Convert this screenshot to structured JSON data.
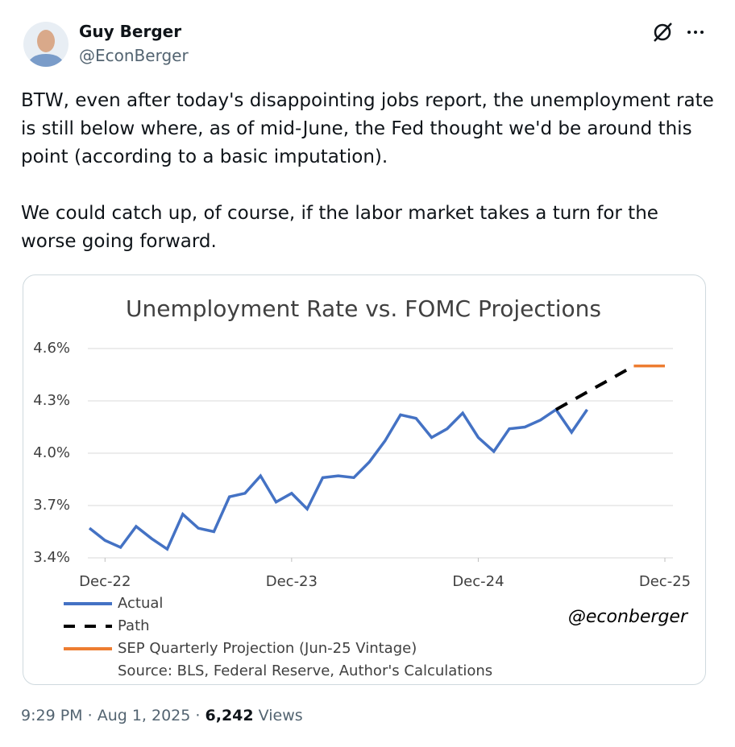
{
  "header": {
    "name": "Guy Berger",
    "handle": "@EconBerger"
  },
  "body": {
    "paragraphs": [
      "BTW, even after today's disappointing jobs report, the unemployment rate is still below where, as of mid-June, the Fed thought we'd be around this point (according to a basic imputation).",
      "We could catch up, of course, if the labor market takes a turn for the worse going forward."
    ]
  },
  "chart_data": {
    "type": "line",
    "title": "Unemployment Rate vs. FOMC Projections",
    "series": [
      {
        "name": "Actual",
        "color": "#4472c4",
        "dash": "solid",
        "x": [
          "Nov-22",
          "Dec-22",
          "Jan-23",
          "Feb-23",
          "Mar-23",
          "Apr-23",
          "May-23",
          "Jun-23",
          "Jul-23",
          "Aug-23",
          "Sep-23",
          "Oct-23",
          "Nov-23",
          "Dec-23",
          "Jan-24",
          "Feb-24",
          "Mar-24",
          "Apr-24",
          "May-24",
          "Jun-24",
          "Jul-24",
          "Aug-24",
          "Sep-24",
          "Oct-24",
          "Nov-24",
          "Dec-24",
          "Jan-25",
          "Feb-25",
          "Mar-25",
          "Apr-25",
          "May-25",
          "Jun-25",
          "Jul-25"
        ],
        "values": [
          3.57,
          3.5,
          3.46,
          3.58,
          3.51,
          3.45,
          3.65,
          3.57,
          3.55,
          3.75,
          3.77,
          3.87,
          3.72,
          3.77,
          3.68,
          3.86,
          3.87,
          3.86,
          3.95,
          4.07,
          4.22,
          4.2,
          4.09,
          4.14,
          4.23,
          4.09,
          4.01,
          4.14,
          4.15,
          4.19,
          4.25,
          4.12,
          4.25
        ]
      },
      {
        "name": "Path",
        "color": "#000000",
        "dash": "dashed",
        "x": [
          "May-25",
          "Jun-25",
          "Jul-25",
          "Aug-25",
          "Sep-25",
          "Oct-25"
        ],
        "values": [
          4.25,
          4.3,
          4.35,
          4.4,
          4.45,
          4.5
        ]
      },
      {
        "name": "SEP Quarterly Projection (Jun-25 Vintage)",
        "color": "#ed7d31",
        "dash": "solid",
        "x": [
          "Oct-25",
          "Nov-25",
          "Dec-25"
        ],
        "values": [
          4.5,
          4.5,
          4.5
        ]
      }
    ],
    "xlim": [
      "Nov-22",
      "Dec-25"
    ],
    "xticks": [
      "Dec-22",
      "Dec-23",
      "Dec-24",
      "Dec-25"
    ],
    "ylim": [
      3.4,
      4.6
    ],
    "yticks": [
      {
        "value": 3.4,
        "label": "3.4%"
      },
      {
        "value": 3.7,
        "label": "3.7%"
      },
      {
        "value": 4.0,
        "label": "4.0%"
      },
      {
        "value": 4.3,
        "label": "4.3%"
      },
      {
        "value": 4.6,
        "label": "4.6%"
      }
    ],
    "grid": true,
    "source": "Source: BLS, Federal Reserve, Author's Calculations",
    "watermark": "@econberger"
  },
  "footer": {
    "time": "9:29 PM",
    "separator": "·",
    "date": "Aug 1, 2025",
    "views_count": "6,242",
    "views_label": "Views"
  }
}
